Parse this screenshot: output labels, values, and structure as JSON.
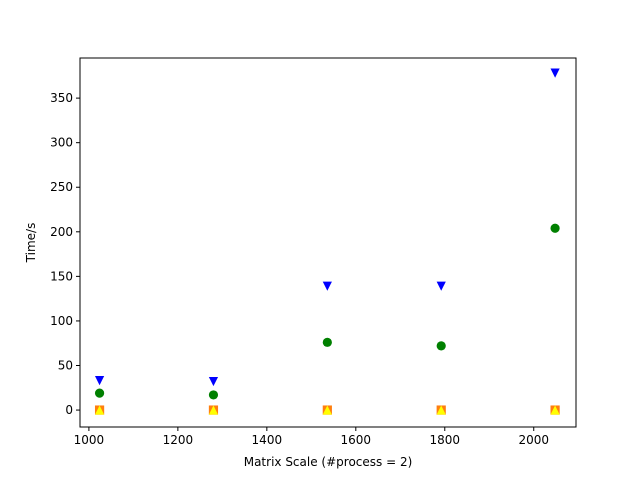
{
  "chart_data": {
    "type": "scatter",
    "title": "",
    "xlabel": "Matrix Scale (#process = 2)",
    "ylabel": "Time/s",
    "xlim": [
      980,
      2095
    ],
    "ylim": [
      -19,
      395
    ],
    "xticks": [
      1000,
      1200,
      1400,
      1600,
      1800,
      2000
    ],
    "yticks": [
      0,
      50,
      100,
      150,
      200,
      250,
      300,
      350
    ],
    "grid": false,
    "legend": "none",
    "x": [
      1024,
      1280,
      1536,
      1792,
      2048
    ],
    "series": [
      {
        "marker": "triangle-down",
        "color": "#0000ff",
        "values": [
          33,
          32,
          139,
          139,
          378
        ]
      },
      {
        "marker": "circle",
        "color": "#008000",
        "values": [
          19,
          17,
          76,
          72,
          204
        ]
      },
      {
        "marker": "square",
        "color": "#ff7f0e",
        "values": [
          0,
          0,
          0,
          0,
          0
        ]
      },
      {
        "marker": "triangle-up",
        "color": "#ffff00",
        "values": [
          0,
          0,
          0,
          0,
          0
        ]
      }
    ]
  }
}
